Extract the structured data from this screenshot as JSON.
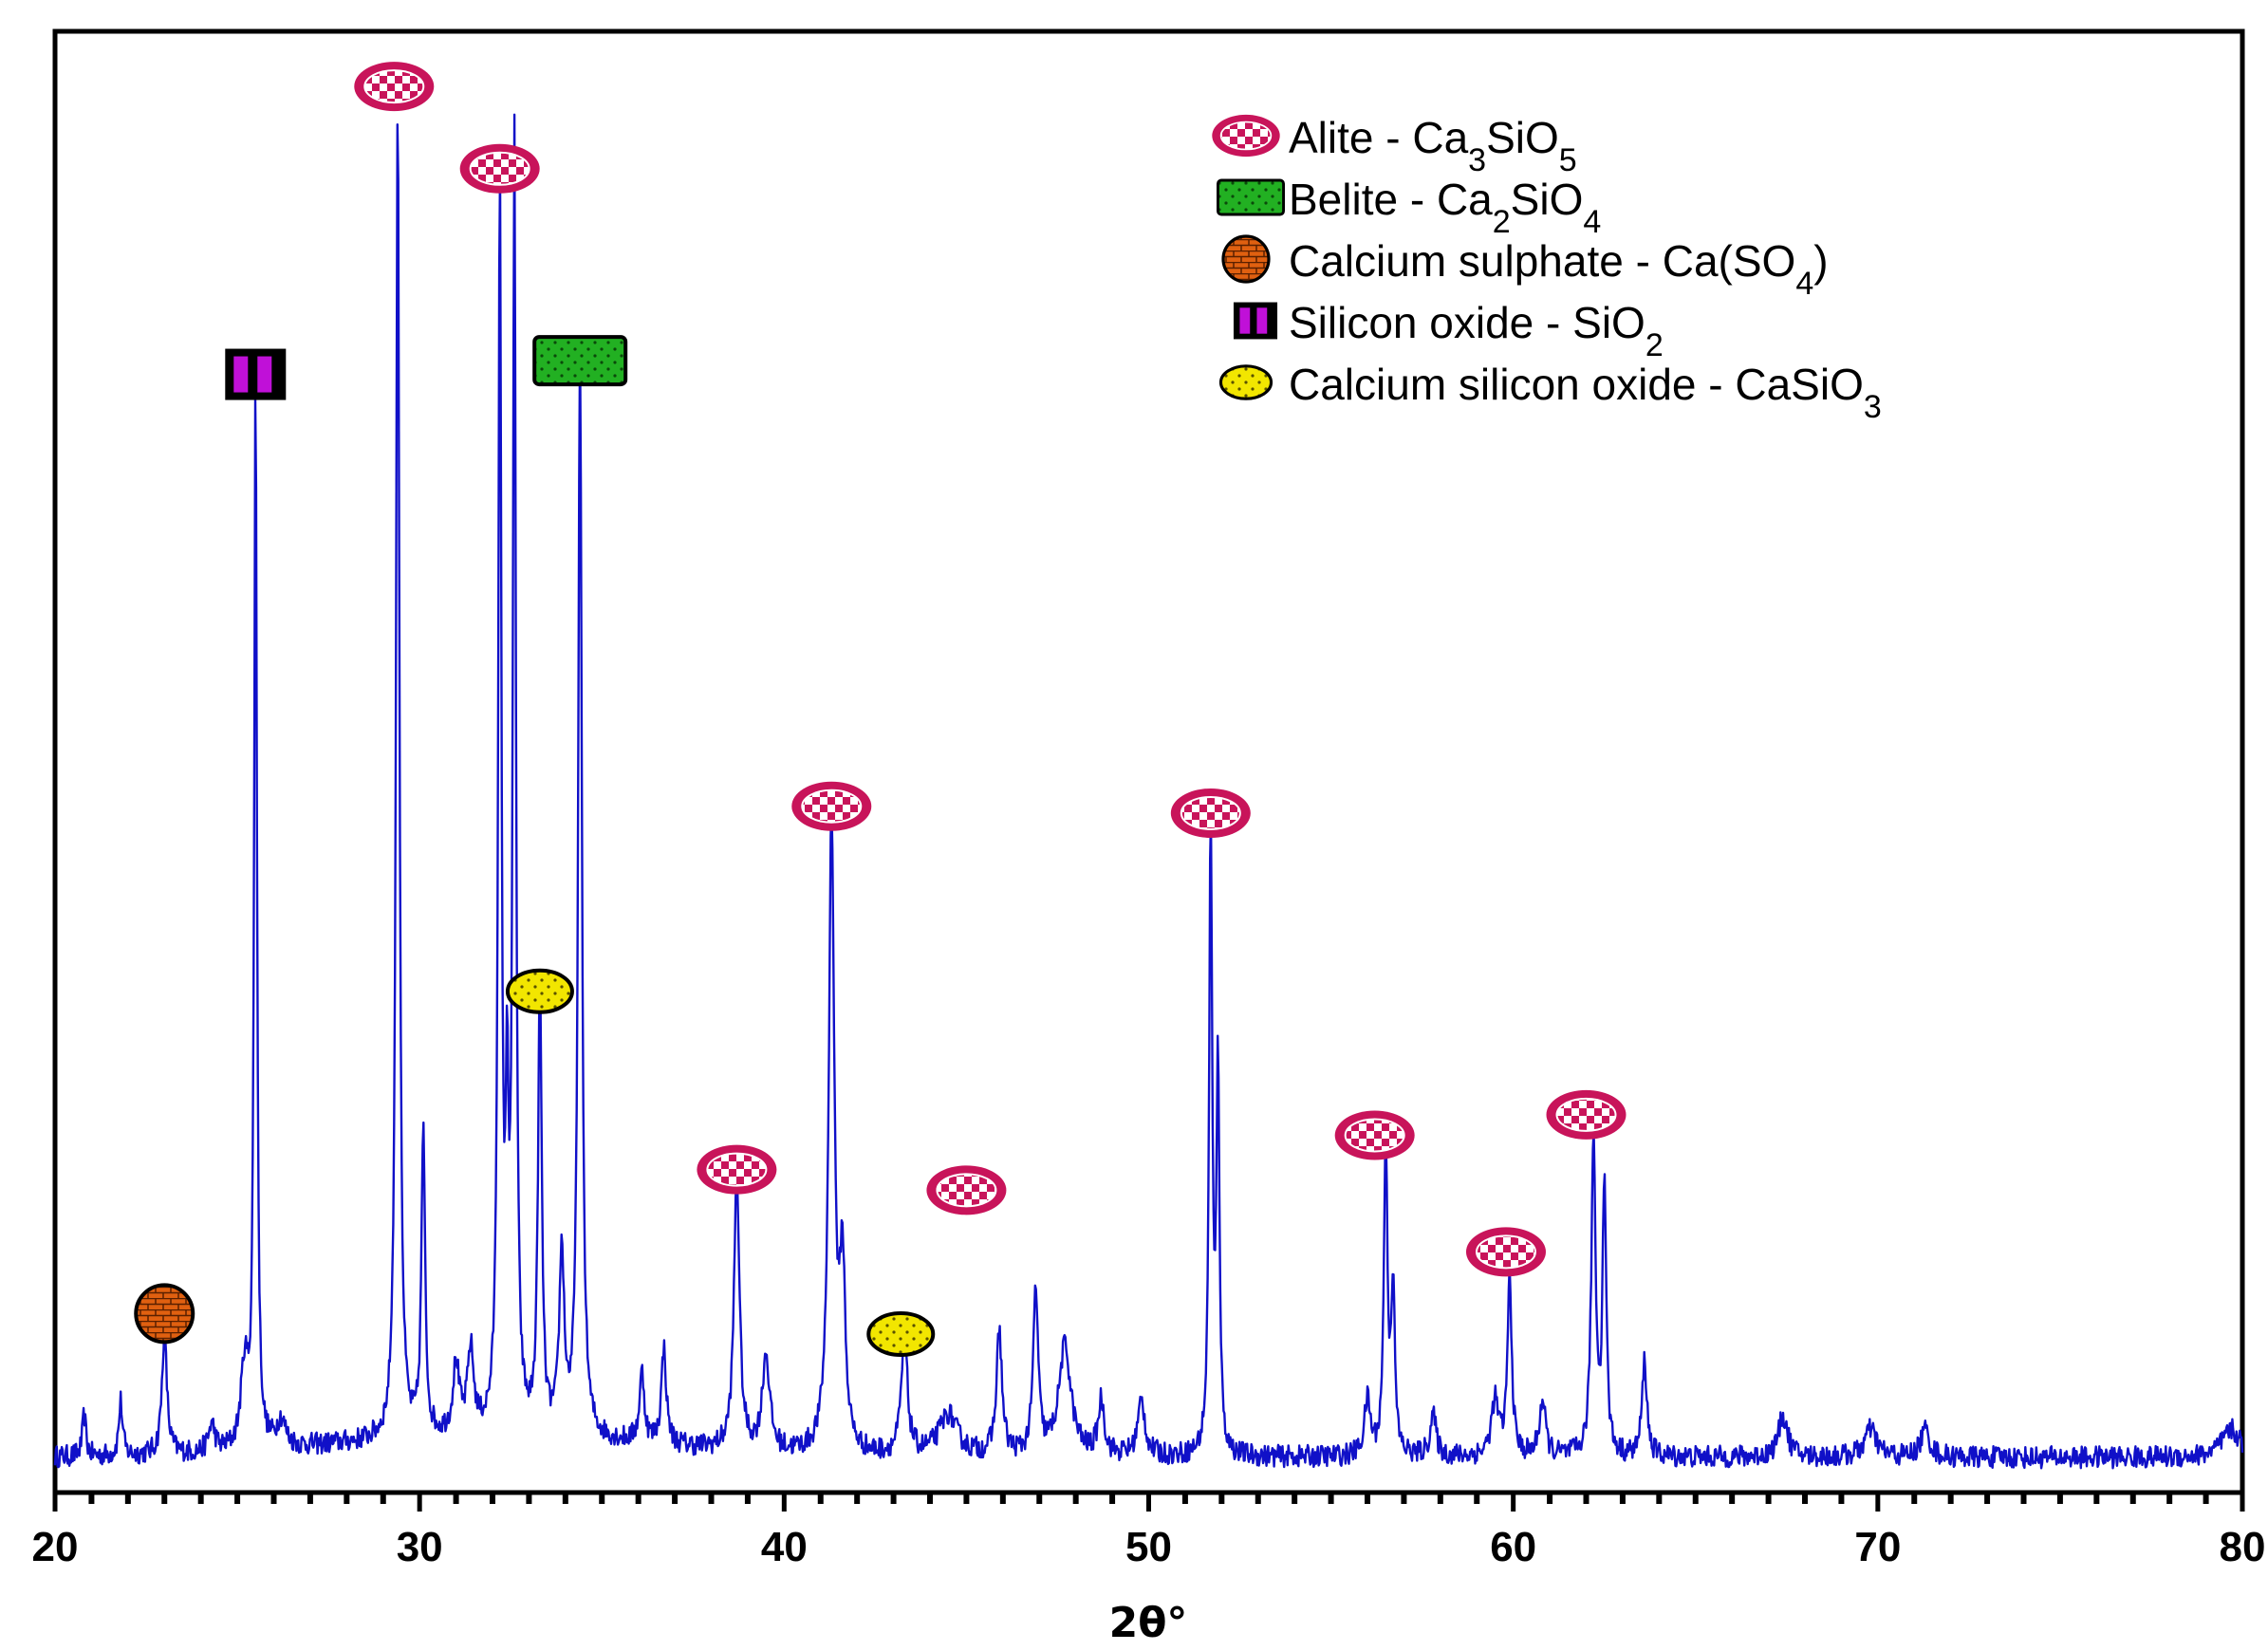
{
  "chart_data": {
    "type": "line",
    "title": "",
    "xlabel": "2θ°",
    "ylabel": "",
    "xlim": [
      20,
      80
    ],
    "xticks": [
      20,
      30,
      40,
      50,
      60,
      70,
      80
    ],
    "grid": false,
    "legend_position": "top-right",
    "series_color": "#1010c8",
    "phases": [
      {
        "id": "alite",
        "marker": "checker-ellipse",
        "color": "#c8145a",
        "label": "Alite - Ca",
        "sub": [
          "3",
          "5"
        ],
        "mid": "SiO",
        "tail": ""
      },
      {
        "id": "belite",
        "marker": "dotted-rect",
        "color": "#22b022",
        "label": "Belite - Ca",
        "sub": [
          "2",
          "4"
        ],
        "mid": "SiO",
        "tail": ""
      },
      {
        "id": "sulphate",
        "marker": "brick-circle",
        "color": "#e06010",
        "label": "Calcium sulphate - Ca(SO",
        "sub": [
          "4"
        ],
        "mid": "",
        "tail": ")"
      },
      {
        "id": "silica",
        "marker": "bar-square",
        "color": "#c010d8",
        "label": "Silicon oxide - SiO",
        "sub": [
          "2"
        ],
        "mid": "",
        "tail": ""
      },
      {
        "id": "wollastonite",
        "marker": "dotted-ellipse",
        "color": "#f2e600",
        "label": "Calcium silicon oxide - CaSiO",
        "sub": [
          "3"
        ],
        "mid": "",
        "tail": ""
      }
    ],
    "baseline": 0.02,
    "peaks": [
      {
        "x": 20.8,
        "h": 0.03,
        "w": 0.06
      },
      {
        "x": 21.8,
        "h": 0.04,
        "w": 0.06
      },
      {
        "x": 23.0,
        "h": 0.09,
        "w": 0.08
      },
      {
        "x": 24.3,
        "h": 0.02,
        "w": 0.1
      },
      {
        "x": 25.2,
        "h": 0.06,
        "w": 0.12
      },
      {
        "x": 25.5,
        "h": 0.775,
        "w": 0.045
      },
      {
        "x": 26.2,
        "h": 0.02,
        "w": 0.15
      },
      {
        "x": 29.4,
        "h": 0.98,
        "w": 0.055
      },
      {
        "x": 30.1,
        "h": 0.22,
        "w": 0.06
      },
      {
        "x": 31.0,
        "h": 0.05,
        "w": 0.1
      },
      {
        "x": 31.4,
        "h": 0.06,
        "w": 0.1
      },
      {
        "x": 32.2,
        "h": 0.91,
        "w": 0.05
      },
      {
        "x": 32.4,
        "h": 0.2,
        "w": 0.05
      },
      {
        "x": 32.6,
        "h": 0.93,
        "w": 0.05
      },
      {
        "x": 33.3,
        "h": 0.33,
        "w": 0.06
      },
      {
        "x": 33.9,
        "h": 0.13,
        "w": 0.08
      },
      {
        "x": 34.4,
        "h": 0.79,
        "w": 0.06
      },
      {
        "x": 36.1,
        "h": 0.05,
        "w": 0.08
      },
      {
        "x": 36.7,
        "h": 0.07,
        "w": 0.08
      },
      {
        "x": 38.7,
        "h": 0.2,
        "w": 0.09
      },
      {
        "x": 39.5,
        "h": 0.07,
        "w": 0.12
      },
      {
        "x": 41.3,
        "h": 0.465,
        "w": 0.09
      },
      {
        "x": 41.6,
        "h": 0.13,
        "w": 0.09
      },
      {
        "x": 43.3,
        "h": 0.085,
        "w": 0.1
      },
      {
        "x": 44.5,
        "h": 0.03,
        "w": 0.3
      },
      {
        "x": 45.9,
        "h": 0.09,
        "w": 0.09
      },
      {
        "x": 46.9,
        "h": 0.12,
        "w": 0.08
      },
      {
        "x": 47.7,
        "h": 0.08,
        "w": 0.2
      },
      {
        "x": 48.7,
        "h": 0.04,
        "w": 0.1
      },
      {
        "x": 49.8,
        "h": 0.04,
        "w": 0.12
      },
      {
        "x": 51.7,
        "h": 0.46,
        "w": 0.05
      },
      {
        "x": 51.9,
        "h": 0.28,
        "w": 0.05
      },
      {
        "x": 56.0,
        "h": 0.04,
        "w": 0.1
      },
      {
        "x": 56.5,
        "h": 0.225,
        "w": 0.06
      },
      {
        "x": 56.7,
        "h": 0.12,
        "w": 0.06
      },
      {
        "x": 57.8,
        "h": 0.03,
        "w": 0.1
      },
      {
        "x": 59.5,
        "h": 0.04,
        "w": 0.12
      },
      {
        "x": 59.9,
        "h": 0.13,
        "w": 0.07
      },
      {
        "x": 60.8,
        "h": 0.04,
        "w": 0.1
      },
      {
        "x": 62.2,
        "h": 0.23,
        "w": 0.07
      },
      {
        "x": 62.5,
        "h": 0.2,
        "w": 0.06
      },
      {
        "x": 63.6,
        "h": 0.07,
        "w": 0.08
      },
      {
        "x": 67.4,
        "h": 0.03,
        "w": 0.15
      },
      {
        "x": 69.8,
        "h": 0.02,
        "w": 0.2
      },
      {
        "x": 71.3,
        "h": 0.02,
        "w": 0.15
      },
      {
        "x": 79.7,
        "h": 0.02,
        "w": 0.3
      }
    ],
    "annotations": [
      {
        "phase": "alite",
        "x": 29.3,
        "y": 1.02
      },
      {
        "phase": "alite",
        "x": 32.2,
        "y": 0.96
      },
      {
        "phase": "belite",
        "x": 34.4,
        "y": 0.82
      },
      {
        "phase": "silica",
        "x": 25.5,
        "y": 0.81
      },
      {
        "phase": "wollastonite",
        "x": 33.3,
        "y": 0.36
      },
      {
        "phase": "alite",
        "x": 38.7,
        "y": 0.23
      },
      {
        "phase": "alite",
        "x": 41.3,
        "y": 0.495
      },
      {
        "phase": "alite",
        "x": 45.0,
        "y": 0.215
      },
      {
        "phase": "wollastonite",
        "x": 43.2,
        "y": 0.11
      },
      {
        "phase": "alite",
        "x": 51.7,
        "y": 0.49
      },
      {
        "phase": "alite",
        "x": 56.2,
        "y": 0.255
      },
      {
        "phase": "alite",
        "x": 59.8,
        "y": 0.17
      },
      {
        "phase": "alite",
        "x": 62.0,
        "y": 0.27
      },
      {
        "phase": "sulphate",
        "x": 23.0,
        "y": 0.125
      }
    ]
  }
}
